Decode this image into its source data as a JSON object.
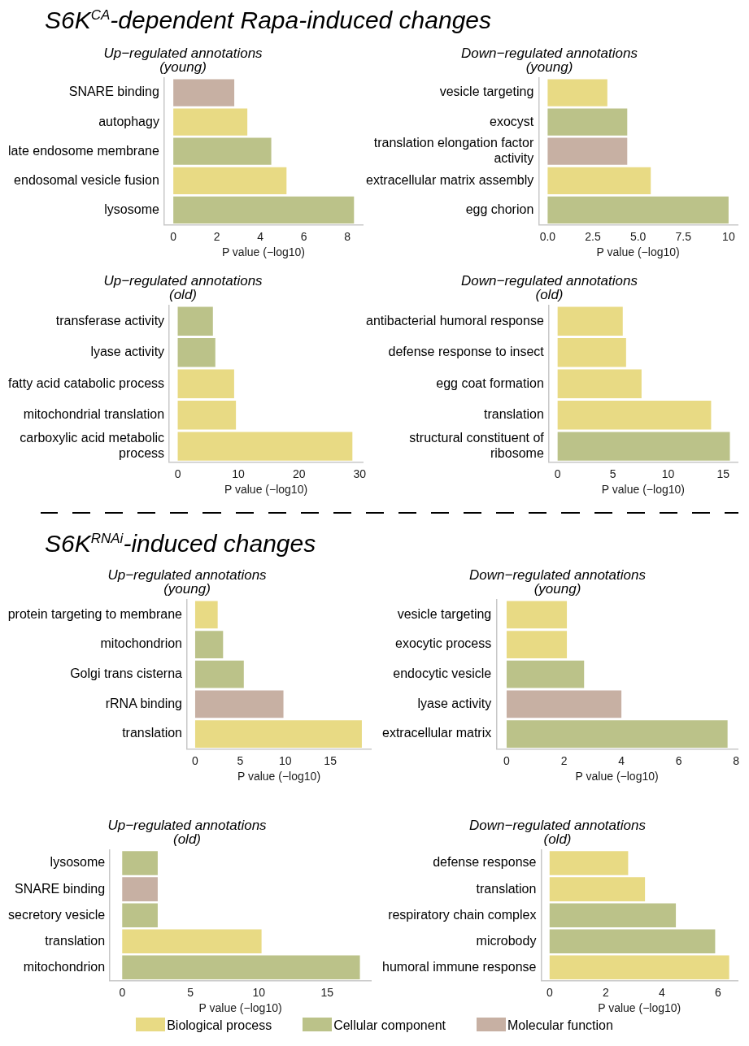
{
  "chart_data": [
    {
      "type": "other",
      "title": "S6K$^{CA}$-dependent Rapa-induced changes"
    },
    {
      "type": "bar",
      "orientation": "horizontal",
      "legend": "bottom",
      "title": "Up−regulated annotations\n(young)",
      "xlabel": "P value (−log10)",
      "categories": [
        "SNARE binding",
        "autophagy",
        "late endosome membrane",
        "endosomal vesicle fusion",
        "lysosome"
      ],
      "xlim": [
        -0.42,
        8.7
      ],
      "xticks": [
        0,
        2,
        4,
        6,
        8
      ],
      "series": [
        {
          "name": "Biological process",
          "color": "#e8da84",
          "values": [
            null,
            3.4,
            null,
            5.2,
            null
          ]
        },
        {
          "name": "Cellular component",
          "color": "#bbc289",
          "values": [
            null,
            null,
            4.5,
            null,
            8.3
          ]
        },
        {
          "name": "Molecular function",
          "color": "#c7b0a3",
          "values": [
            2.8,
            null,
            null,
            null,
            null
          ]
        }
      ]
    },
    {
      "type": "bar",
      "orientation": "horizontal",
      "legend": "bottom",
      "title": "Down−regulated annotations\n(young)",
      "xlabel": "P value (−log10)",
      "categories": [
        "vesicle targeting",
        "exocyst",
        "translation elongation factor activity",
        "extracellular matrix assembly",
        "egg chorion"
      ],
      "xlim": [
        -0.5,
        10.5
      ],
      "xticks": [
        {
          "value": 0,
          "label": "0.0"
        },
        {
          "value": 2.5,
          "label": "2.5"
        },
        {
          "value": 5,
          "label": "5.0"
        },
        {
          "value": 7.5,
          "label": "7.5"
        },
        10
      ],
      "series": [
        {
          "name": "Biological process",
          "color": "#e8da84",
          "values": [
            3.3,
            null,
            null,
            5.7,
            null
          ]
        },
        {
          "name": "Cellular component",
          "color": "#bbc289",
          "values": [
            null,
            4.4,
            null,
            null,
            10.0
          ]
        },
        {
          "name": "Molecular function",
          "color": "#c7b0a3",
          "values": [
            null,
            null,
            4.4,
            null,
            null
          ]
        }
      ]
    },
    {
      "type": "bar",
      "orientation": "horizontal",
      "legend": "bottom",
      "title": "Up−regulated annotations\n(old)",
      "xlabel": "P value (−log10)",
      "categories": [
        "transferase activity",
        "lyase activity",
        "fatty acid catabolic process",
        "mitochondrial translation",
        "carboxylic acid metabolic process"
      ],
      "xlim": [
        -1.4,
        30.5
      ],
      "xticks": [
        0,
        10,
        20,
        30
      ],
      "series": [
        {
          "name": "Biological process",
          "color": "#e8da84",
          "values": [
            null,
            null,
            9.3,
            9.6,
            28.8
          ]
        },
        {
          "name": "Cellular component",
          "color": "#bbc289",
          "values": [
            5.8,
            6.2,
            null,
            null,
            null
          ]
        }
      ]
    },
    {
      "type": "bar",
      "orientation": "horizontal",
      "legend": "bottom",
      "title": "Down−regulated annotations\n(old)",
      "xlabel": "P value (−log10)",
      "categories": [
        "antibacterial humoral response",
        "defense response to insect",
        "egg coat formation",
        "translation",
        "structural constituent of ribosome"
      ],
      "xlim": [
        -0.8,
        16.3
      ],
      "xticks": [
        0,
        5,
        10,
        15
      ],
      "series": [
        {
          "name": "Biological process",
          "color": "#e8da84",
          "values": [
            5.9,
            6.2,
            7.6,
            13.9,
            null
          ]
        },
        {
          "name": "Cellular component",
          "color": "#bbc289",
          "values": [
            null,
            null,
            null,
            null,
            15.6
          ]
        }
      ]
    },
    {
      "type": "other",
      "title": "S6K$^{RNAi}$-induced changes"
    },
    {
      "type": "bar",
      "orientation": "horizontal",
      "legend": "bottom",
      "title": "Up−regulated annotations\n(young)",
      "xlabel": "P value (−log10)",
      "categories": [
        "protein targeting to membrane",
        "mitochondrion",
        "Golgi trans cisterna",
        "rRNA binding",
        "translation"
      ],
      "xlim": [
        -0.9,
        19.5
      ],
      "xticks": [
        0,
        5,
        10,
        15
      ],
      "series": [
        {
          "name": "Biological process",
          "color": "#e8da84",
          "values": [
            2.5,
            null,
            null,
            null,
            18.5
          ]
        },
        {
          "name": "Cellular component",
          "color": "#bbc289",
          "values": [
            null,
            3.1,
            5.4,
            null,
            null
          ]
        },
        {
          "name": "Molecular function",
          "color": "#c7b0a3",
          "values": [
            null,
            null,
            null,
            9.8,
            null
          ]
        }
      ]
    },
    {
      "type": "bar",
      "orientation": "horizontal",
      "legend": "bottom",
      "title": "Down−regulated annotations\n(young)",
      "xlabel": "P value (−log10)",
      "categories": [
        "vesicle targeting",
        "exocytic process",
        "endocytic vesicle",
        "lyase activity",
        "extracellular matrix"
      ],
      "xlim": [
        -0.36,
        8.05
      ],
      "xticks": [
        0,
        2,
        4,
        6,
        8
      ],
      "series": [
        {
          "name": "Biological process",
          "color": "#e8da84",
          "values": [
            2.1,
            2.1,
            null,
            null,
            null
          ]
        },
        {
          "name": "Cellular component",
          "color": "#bbc289",
          "values": [
            null,
            null,
            2.7,
            null,
            7.7
          ]
        },
        {
          "name": "Molecular function",
          "color": "#c7b0a3",
          "values": [
            null,
            null,
            null,
            4.0,
            null
          ]
        }
      ]
    },
    {
      "type": "bar",
      "orientation": "horizontal",
      "legend": "bottom",
      "title": "Up−regulated annotations\n(old)",
      "xlabel": "P value (−log10)",
      "categories": [
        "lysosome",
        "SNARE binding",
        "secretory vesicle",
        "translation",
        "mitochondrion"
      ],
      "xlim": [
        -0.9,
        18.2
      ],
      "xticks": [
        0,
        5,
        10,
        15
      ],
      "series": [
        {
          "name": "Biological process",
          "color": "#e8da84",
          "values": [
            null,
            null,
            null,
            10.2,
            null
          ]
        },
        {
          "name": "Cellular component",
          "color": "#bbc289",
          "values": [
            2.6,
            null,
            2.6,
            null,
            17.4
          ]
        },
        {
          "name": "Molecular function",
          "color": "#c7b0a3",
          "values": [
            null,
            2.6,
            null,
            null,
            null
          ]
        }
      ]
    },
    {
      "type": "bar",
      "orientation": "horizontal",
      "legend": "bottom",
      "title": "Down−regulated annotations\n(old)",
      "xlabel": "P value (−log10)",
      "categories": [
        "defense response",
        "translation",
        "respiratory chain complex",
        "microbody",
        "humoral immune response"
      ],
      "xlim": [
        -0.3,
        6.7
      ],
      "xticks": [
        0,
        2,
        4,
        6
      ],
      "series": [
        {
          "name": "Biological process",
          "color": "#e8da84",
          "values": [
            2.8,
            3.4,
            null,
            null,
            6.4
          ]
        },
        {
          "name": "Cellular component",
          "color": "#bbc289",
          "values": [
            null,
            null,
            4.5,
            5.9,
            null
          ]
        }
      ]
    }
  ]
}
